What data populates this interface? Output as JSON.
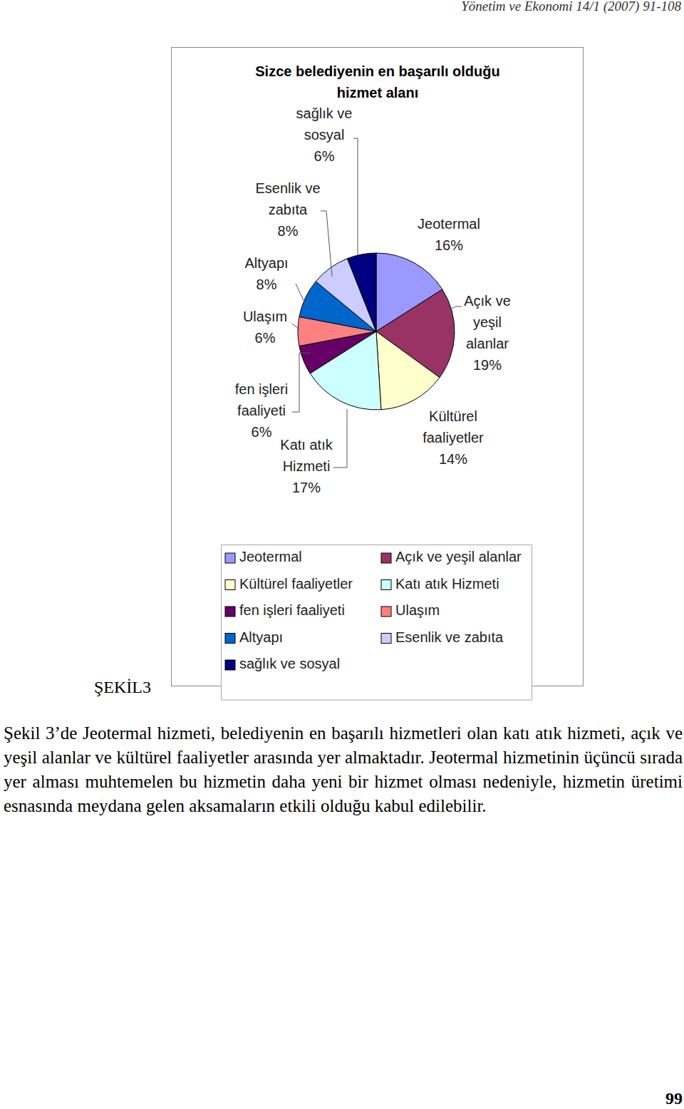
{
  "header": "Yönetim ve Ekonomi 14/1 (2007) 91-108",
  "chart_data": {
    "type": "pie",
    "title": "Sizce belediyenin en başarılı olduğu hizmet alanı",
    "categories": [
      "Jeotermal",
      "Açık ve yeşil alanlar",
      "Kültürel faaliyetler",
      "Katı atık Hizmeti",
      "fen işleri faaliyeti",
      "Ulaşım",
      "Altyapı",
      "Esenlik ve zabıta",
      "sağlık ve sosyal"
    ],
    "values": [
      16,
      19,
      14,
      17,
      6,
      6,
      8,
      8,
      6
    ],
    "value_labels": [
      "16%",
      "19%",
      "14%",
      "17%",
      "6%",
      "6%",
      "8%",
      "8%",
      "6%"
    ],
    "colors": [
      "#9999ff",
      "#993366",
      "#ffffcc",
      "#ccffff",
      "#660066",
      "#ff8080",
      "#0066cc",
      "#ccccff",
      "#000080"
    ],
    "data_labels": true,
    "legend": "bottom"
  },
  "figure_label": "ŞEKİL3",
  "paragraph": "Şekil 3’de Jeotermal hizmeti, belediyenin en başarılı hizmetleri olan katı atık hizmeti, açık ve yeşil alanlar ve kültürel faaliyetler arasında yer almaktadır. Jeotermal hizmetinin üçüncü sırada yer alması muhtemelen bu hizmetin daha yeni bir hizmet olması nedeniyle, hizmetin üretimi esnasında meydana gelen aksamaların etkili olduğu kabul edilebilir.",
  "page_number": 99
}
